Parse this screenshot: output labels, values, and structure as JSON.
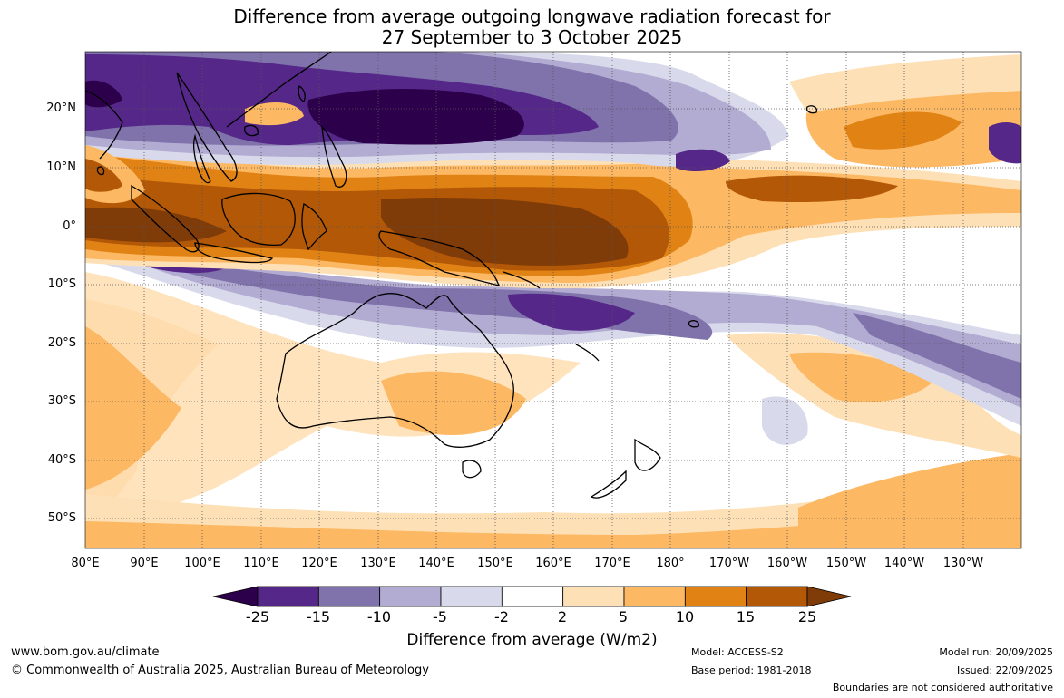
{
  "title": {
    "line1": "Difference from average outgoing longwave radiation forecast for",
    "line2": "27 September to 3 October 2025"
  },
  "map": {
    "lat_labels": [
      "20°N",
      "10°N",
      "0°",
      "10°S",
      "20°S",
      "30°S",
      "40°S",
      "50°S"
    ],
    "lon_labels": [
      "80°E",
      "90°E",
      "100°E",
      "110°E",
      "120°E",
      "130°E",
      "140°E",
      "150°E",
      "160°E",
      "170°E",
      "180°",
      "170°W",
      "160°W",
      "150°W",
      "140°W",
      "130°W"
    ],
    "colors": {
      "p25plus": "#7f3b08",
      "p15_25": "#b35806",
      "p10_15": "#e08214",
      "p5_10": "#fdb863",
      "p2_5": "#fee0b6",
      "neutral": "#ffffff",
      "n2_5": "#d8daeb",
      "n5_10": "#b2abd2",
      "n10_15": "#8073ac",
      "n15_25": "#542788",
      "n25minus": "#2d004b"
    }
  },
  "colorbar": {
    "ticks": [
      "-25",
      "-15",
      "-10",
      "-5",
      "-2",
      "2",
      "5",
      "10",
      "15",
      "25"
    ],
    "colors": [
      "#542788",
      "#8073ac",
      "#b2abd2",
      "#d8daeb",
      "#ffffff",
      "#fee0b6",
      "#fdb863",
      "#e08214",
      "#b35806"
    ],
    "low_extend_color": "#2d004b",
    "high_extend_color": "#7f3b08",
    "label": "Difference from average (W/m2)"
  },
  "footer": {
    "website": "www.bom.gov.au/climate",
    "copyright": "© Commonwealth of Australia 2025, Australian Bureau of Meteorology",
    "model": "Model: ACCESS-S2",
    "base_period": "Base period: 1981-2018",
    "model_run": "Model run: 20/09/2025",
    "issued": "Issued: 22/09/2025",
    "disclaimer": "Boundaries are not considered authoritative"
  }
}
